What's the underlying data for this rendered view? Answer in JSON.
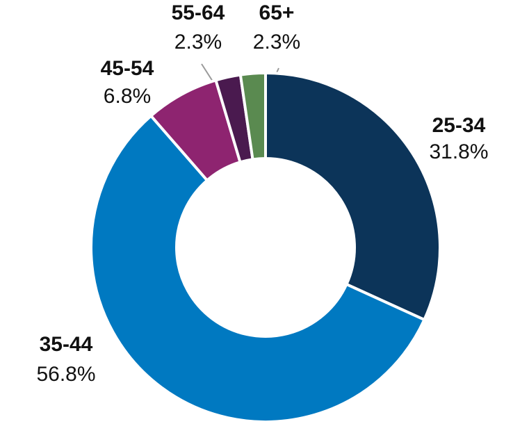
{
  "chart_data": {
    "type": "donut",
    "categories": [
      "25-34",
      "35-44",
      "45-54",
      "55-64",
      "65+"
    ],
    "values": [
      31.8,
      56.8,
      6.8,
      2.3,
      2.3
    ],
    "value_labels": [
      "31.8%",
      "56.8%",
      "6.8%",
      "2.3%",
      "2.3%"
    ],
    "colors": [
      "#0c3459",
      "#0079c1",
      "#8e2470",
      "#4a1a4f",
      "#5a8a50"
    ]
  }
}
